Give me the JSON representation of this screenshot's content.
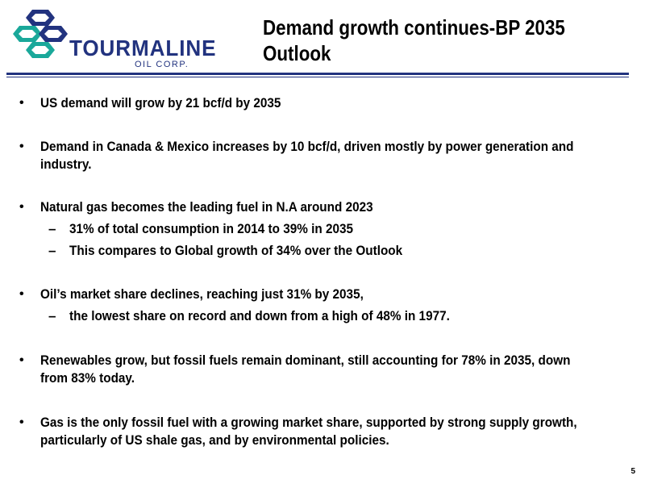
{
  "logo": {
    "name": "TOURMALINE",
    "subtitle": "OIL CORP.",
    "colors": {
      "primary": "#22337f",
      "accent": "#1aa89a"
    }
  },
  "title": {
    "line1": "Demand growth continues-BP 2035",
    "line2": "Outlook"
  },
  "bullets": [
    {
      "text": "US demand will grow by 21 bcf/d by 2035"
    },
    {
      "text_line1": "Demand in Canada & Mexico increases by 10 bcf/d, driven mostly by power generation and",
      "text_line2": "industry."
    },
    {
      "text": "Natural gas becomes the leading fuel in N.A around 2023",
      "subs": [
        "31% of total consumption in 2014 to 39% in 2035",
        "This compares to Global growth of 34% over the Outlook"
      ]
    },
    {
      "text": "Oil’s market share declines, reaching just 31% by 2035,",
      "subs": [
        "the lowest share on record and down from a high of 48% in 1977."
      ]
    },
    {
      "text_line1": "Renewables grow, but fossil fuels remain dominant, still accounting for 78% in 2035, down",
      "text_line2": "from 83% today."
    },
    {
      "text_line1": "Gas is the only fossil fuel with a growing market share, supported by strong supply growth,",
      "text_line2": "particularly of US shale gas, and by environmental policies."
    }
  ],
  "bullet_char": "•",
  "dash_char": "–",
  "page_number": "5"
}
